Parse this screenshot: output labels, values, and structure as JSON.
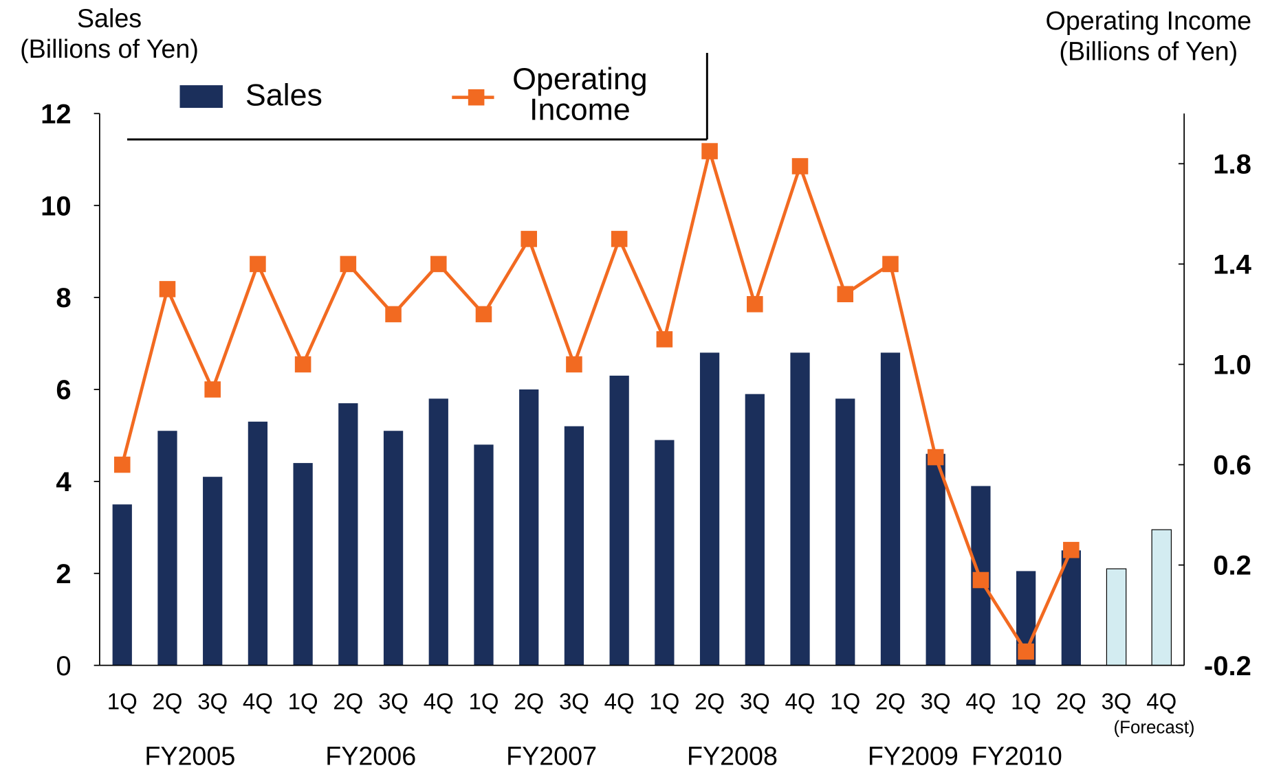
{
  "chart_data": {
    "type": "bar_line",
    "y_label": [
      "Sales",
      "(Billions of Yen)"
    ],
    "y2_label": [
      "Operating Income",
      "(Billions of Yen)"
    ],
    "categories": [
      "1Q",
      "2Q",
      "3Q",
      "4Q",
      "1Q",
      "2Q",
      "3Q",
      "4Q",
      "1Q",
      "2Q",
      "3Q",
      "4Q",
      "1Q",
      "2Q",
      "3Q",
      "4Q",
      "1Q",
      "2Q",
      "3Q",
      "4Q",
      "1Q",
      "2Q",
      "3Q",
      "4Q"
    ],
    "groups": [
      "FY2005",
      "FY2006",
      "FY2007",
      "FY2008",
      "FY2009",
      "FY2010"
    ],
    "annotation": "(Forecast)",
    "series": [
      {
        "name": "Sales",
        "type": "bar",
        "color": "#1b2f5b",
        "colors": [
          "#1b2f5b",
          "#1b2f5b",
          "#1b2f5b",
          "#1b2f5b",
          "#1b2f5b",
          "#1b2f5b",
          "#1b2f5b",
          "#1b2f5b",
          "#1b2f5b",
          "#1b2f5b",
          "#1b2f5b",
          "#1b2f5b",
          "#1b2f5b",
          "#1b2f5b",
          "#1b2f5b",
          "#1b2f5b",
          "#1b2f5b",
          "#1b2f5b",
          "#1b2f5b",
          "#1b2f5b",
          "#1b2f5b",
          "#1b2f5b",
          "#d3ecf1",
          "#d3ecf1"
        ],
        "values": [
          3.5,
          5.1,
          4.1,
          5.3,
          4.4,
          5.7,
          5.1,
          5.8,
          4.8,
          6.0,
          5.2,
          6.3,
          4.9,
          6.8,
          5.9,
          6.8,
          5.8,
          6.8,
          4.6,
          3.9,
          2.05,
          2.5,
          2.1,
          2.95
        ]
      },
      {
        "name": "Operating Income",
        "type": "line",
        "axis": "y2",
        "color": "#f26a21",
        "values": [
          0.6,
          1.3,
          0.9,
          1.4,
          1.0,
          1.4,
          1.2,
          1.4,
          1.2,
          1.5,
          1.0,
          1.5,
          1.1,
          1.85,
          1.24,
          1.79,
          1.28,
          1.4,
          0.63,
          0.14,
          -0.145,
          0.26,
          null,
          null
        ]
      }
    ],
    "ylim": [
      0,
      12
    ],
    "yticks": [
      0,
      2,
      4,
      6,
      8,
      10,
      12
    ],
    "y2lim": [
      -0.2,
      2.0
    ],
    "y2ticks": [
      -0.2,
      0.2,
      0.6,
      {
        "value": 1,
        "label": "1.0"
      },
      1.4,
      1.8
    ]
  }
}
